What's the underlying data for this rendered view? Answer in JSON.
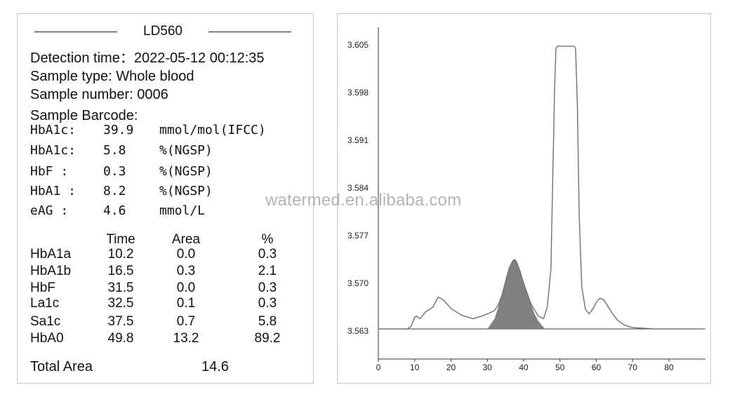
{
  "report": {
    "title": "LD560",
    "detection_time": "Detection time：2022-05-12  00:12:35",
    "sample_type": "Sample type: Whole blood",
    "sample_number": "Sample number: 0006",
    "sample_barcode": "Sample Barcode:"
  },
  "results": [
    {
      "name": "HbA1c:",
      "value": "39.9",
      "unit": "mmol/mol(IFCC)"
    },
    {
      "name": "HbA1c:",
      "value": "5.8",
      "unit": "%(NGSP)"
    },
    {
      "name": "HbF  :",
      "value": "0.3",
      "unit": "%(NGSP)"
    },
    {
      "name": "HbA1 :",
      "value": "8.2",
      "unit": "%(NGSP)"
    },
    {
      "name": "eAG  :",
      "value": "4.6",
      "unit": "mmol/L"
    }
  ],
  "peak_table": {
    "headers": {
      "time": "Time",
      "area": "Area",
      "pct": "%"
    },
    "rows": [
      {
        "name": "HbA1a",
        "time": "10.2",
        "area": "0.0",
        "pct": "0.3"
      },
      {
        "name": "HbA1b",
        "time": "16.5",
        "area": "0.3",
        "pct": "2.1"
      },
      {
        "name": "HbF",
        "time": "31.5",
        "area": "0.0",
        "pct": "0.3"
      },
      {
        "name": "La1c",
        "time": "32.5",
        "area": "0.1",
        "pct": "0.3"
      },
      {
        "name": "Sa1c",
        "time": "37.5",
        "area": "0.7",
        "pct": "5.8"
      },
      {
        "name": "HbA0",
        "time": "49.8",
        "area": "13.2",
        "pct": "89.2"
      }
    ],
    "total_label": "Total Area",
    "total_value": "14.6"
  },
  "watermark": "watermed.en.alibaba.com",
  "chart_data": {
    "type": "line",
    "title": "",
    "xlabel": "",
    "ylabel": "",
    "x_ticks": [
      "0",
      "10",
      "20",
      "30",
      "40",
      "50",
      "60",
      "70",
      "80"
    ],
    "y_ticks": [
      "3.563",
      "3.570",
      "3.577",
      "3.584",
      "3.591",
      "3.598",
      "3.605"
    ],
    "xlim": [
      0,
      88
    ],
    "ylim": [
      3.563,
      3.607
    ],
    "grid": false,
    "shaded_peak_color": "#808080",
    "line_color": "#6f6f6f",
    "series": [
      {
        "x": [
          0,
          8,
          9,
          10,
          10.5,
          11.5,
          13,
          15,
          16.5,
          18,
          20,
          23,
          26,
          28,
          30,
          32,
          33,
          34,
          35,
          36,
          37,
          37.5,
          38,
          39,
          40,
          41,
          42,
          44,
          45.5,
          46.5,
          47.5,
          48,
          48.5,
          48.9,
          49.3,
          53.9,
          54.3,
          54.8,
          55.3,
          56,
          57,
          58,
          59,
          60,
          61,
          62,
          63,
          64.5,
          66,
          68,
          70,
          73,
          76,
          80,
          84,
          88
        ],
        "y": [
          3.5633,
          3.5633,
          3.5637,
          3.565,
          3.5652,
          3.5648,
          3.5658,
          3.5665,
          3.568,
          3.5675,
          3.5663,
          3.5653,
          3.5648,
          3.5651,
          3.5655,
          3.566,
          3.5668,
          3.5682,
          3.5702,
          3.5722,
          3.5733,
          3.5735,
          3.5732,
          3.5718,
          3.57,
          3.5685,
          3.567,
          3.5652,
          3.5648,
          3.5665,
          3.572,
          3.585,
          3.598,
          3.6045,
          3.6048,
          3.6048,
          3.6045,
          3.596,
          3.58,
          3.5695,
          3.5662,
          3.5655,
          3.5662,
          3.5672,
          3.5678,
          3.5676,
          3.5668,
          3.5655,
          3.5645,
          3.5638,
          3.5635,
          3.5634,
          3.5633,
          3.5633,
          3.5633,
          3.5633
        ]
      }
    ],
    "shaded_peak": {
      "x": [
        30,
        32,
        33,
        34,
        35,
        36,
        37,
        37.5,
        38,
        39,
        40,
        41,
        42,
        43,
        44,
        45,
        46
      ],
      "y": [
        3.5633,
        3.5648,
        3.5665,
        3.5682,
        3.5702,
        3.5722,
        3.5733,
        3.5735,
        3.5732,
        3.5718,
        3.57,
        3.5685,
        3.567,
        3.5655,
        3.5645,
        3.5638,
        3.5633
      ]
    }
  }
}
